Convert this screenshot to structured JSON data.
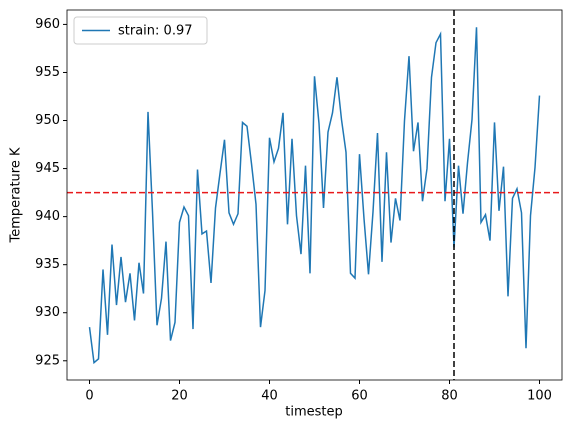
{
  "chart_data": {
    "type": "line",
    "xlabel": "timestep",
    "ylabel": "Temperature K",
    "x": [
      0,
      1,
      2,
      3,
      4,
      5,
      6,
      7,
      8,
      9,
      10,
      11,
      12,
      13,
      14,
      15,
      16,
      17,
      18,
      19,
      20,
      21,
      22,
      23,
      24,
      25,
      26,
      27,
      28,
      29,
      30,
      31,
      32,
      33,
      34,
      35,
      36,
      37,
      38,
      39,
      40,
      41,
      42,
      43,
      44,
      45,
      46,
      47,
      48,
      49,
      50,
      51,
      52,
      53,
      54,
      55,
      56,
      57,
      58,
      59,
      60,
      61,
      62,
      63,
      64,
      65,
      66,
      67,
      68,
      69,
      70,
      71,
      72,
      73,
      74,
      75,
      76,
      77,
      78,
      79,
      80,
      81,
      82,
      83,
      84,
      85,
      86,
      87,
      88,
      89,
      90,
      91,
      92,
      93,
      94,
      95,
      96,
      97,
      98,
      99,
      100
    ],
    "series": [
      {
        "name": "strain: 0.97",
        "color": "#1f77b4",
        "values": [
          928.5,
          924.8,
          925.2,
          934.5,
          927.7,
          937.1,
          930.8,
          935.8,
          931.1,
          934.1,
          929.2,
          935.2,
          932.0,
          950.9,
          940.5,
          928.7,
          931.5,
          937.4,
          927.1,
          929.0,
          939.4,
          941.0,
          940.1,
          928.3,
          944.9,
          938.2,
          938.5,
          933.1,
          940.9,
          944.5,
          948.0,
          940.4,
          939.2,
          940.3,
          949.8,
          949.4,
          945.5,
          941.3,
          928.5,
          932.3,
          948.2,
          945.7,
          947.1,
          950.8,
          939.2,
          948.1,
          940.1,
          936.1,
          945.3,
          934.1,
          954.6,
          949.7,
          940.9,
          948.8,
          950.8,
          954.5,
          950.1,
          946.7,
          934.1,
          933.6,
          946.5,
          939.8,
          934.0,
          940.5,
          948.7,
          935.3,
          946.7,
          937.3,
          941.9,
          939.6,
          950.0,
          956.7,
          946.8,
          949.8,
          941.6,
          945.0,
          954.5,
          958.1,
          959.0,
          941.6,
          948.1,
          936.8,
          945.3,
          940.3,
          945.6,
          950.1,
          959.7,
          939.4,
          940.2,
          937.5,
          949.8,
          940.6,
          945.2,
          931.7,
          941.9,
          942.9,
          940.4,
          926.3,
          940.1,
          945.1,
          952.6
        ]
      }
    ],
    "hline": {
      "value": 942.5,
      "color": "#e8191b"
    },
    "vline": {
      "value": 81,
      "color": "#000000"
    },
    "xlim": [
      -5,
      105
    ],
    "xticks": [
      0,
      20,
      40,
      60,
      80,
      100
    ],
    "ylim": [
      923.0,
      961.5
    ],
    "yticks": [
      925,
      930,
      935,
      940,
      945,
      950,
      955,
      960
    ],
    "legend": "upper left"
  }
}
